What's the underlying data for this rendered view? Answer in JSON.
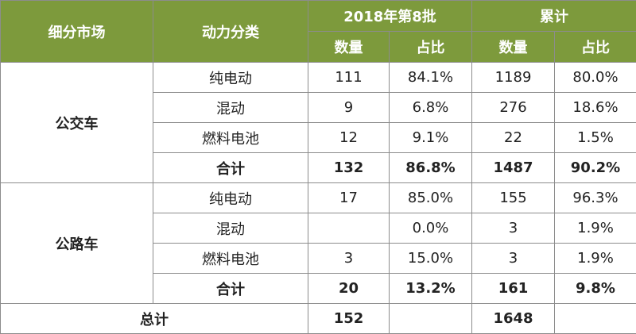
{
  "headers": {
    "segment": "细分市场",
    "power": "动力分类",
    "batch": "2018年第8批",
    "cumulative": "累计",
    "qty": "数量",
    "share": "占比"
  },
  "groups": [
    {
      "market": "公交车",
      "rows": [
        {
          "type": "纯电动",
          "batch_qty": "111",
          "batch_share": "84.1%",
          "cum_qty": "1189",
          "cum_share": "80.0%"
        },
        {
          "type": "混动",
          "batch_qty": "9",
          "batch_share": "6.8%",
          "cum_qty": "276",
          "cum_share": "18.6%"
        },
        {
          "type": "燃料电池",
          "batch_qty": "12",
          "batch_share": "9.1%",
          "cum_qty": "22",
          "cum_share": "1.5%"
        }
      ],
      "subtotal": {
        "label": "合计",
        "batch_qty": "132",
        "batch_share": "86.8%",
        "cum_qty": "1487",
        "cum_share": "90.2%"
      }
    },
    {
      "market": "公路车",
      "rows": [
        {
          "type": "纯电动",
          "batch_qty": "17",
          "batch_share": "85.0%",
          "cum_qty": "155",
          "cum_share": "96.3%"
        },
        {
          "type": "混动",
          "batch_qty": "",
          "batch_share": "0.0%",
          "cum_qty": "3",
          "cum_share": "1.9%"
        },
        {
          "type": "燃料电池",
          "batch_qty": "3",
          "batch_share": "15.0%",
          "cum_qty": "3",
          "cum_share": "1.9%"
        }
      ],
      "subtotal": {
        "label": "合计",
        "batch_qty": "20",
        "batch_share": "13.2%",
        "cum_qty": "161",
        "cum_share": "9.8%"
      }
    }
  ],
  "total": {
    "label": "总计",
    "batch_qty": "152",
    "cum_qty": "1648"
  },
  "colors": {
    "header_bg": "#7d9a3c",
    "header_text": "#ffffff"
  }
}
